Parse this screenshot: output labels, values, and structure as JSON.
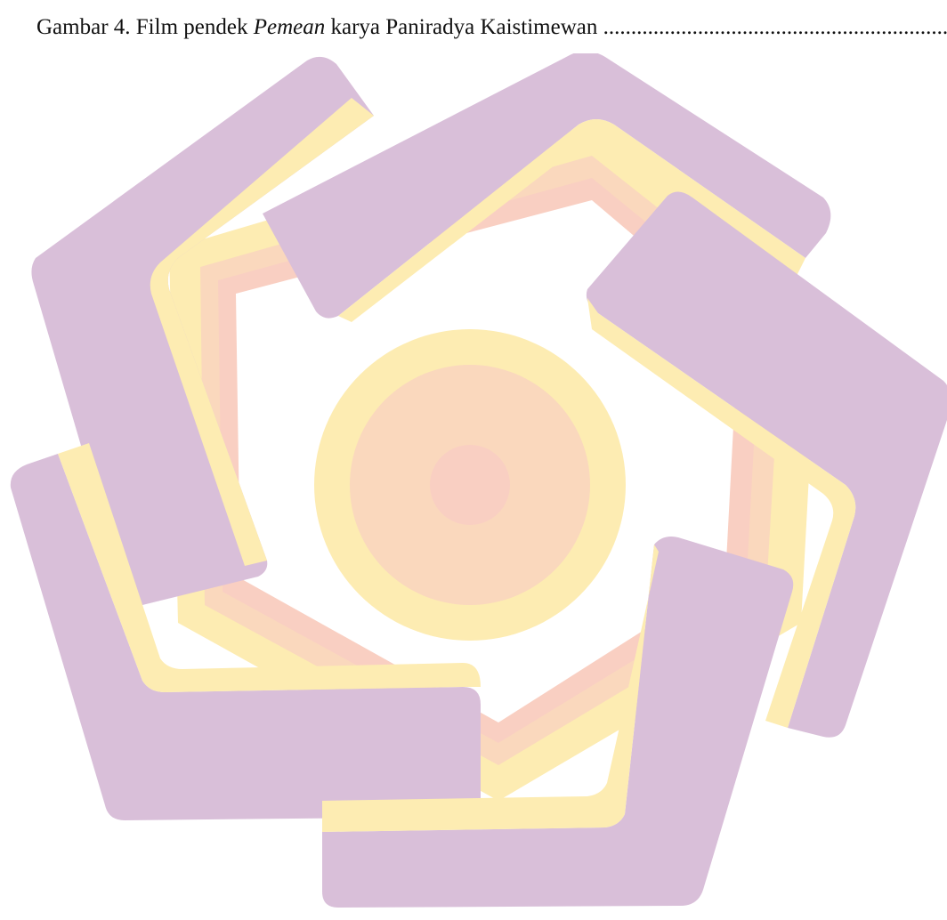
{
  "toc_entry": {
    "prefix": "Gambar 4. Film pendek ",
    "italic_title": "Pemean",
    "suffix": " karya Paniradya Kaistimewan ",
    "leader": "......................................................................................"
  },
  "watermark": {
    "icon": "university-logo-watermark",
    "colors": {
      "purple": "#d9bfd9",
      "purple_dark": "#d3bedd",
      "yellow": "#fdecb2",
      "peach": "#fad8bd",
      "pink": "#f9cfc2"
    }
  }
}
